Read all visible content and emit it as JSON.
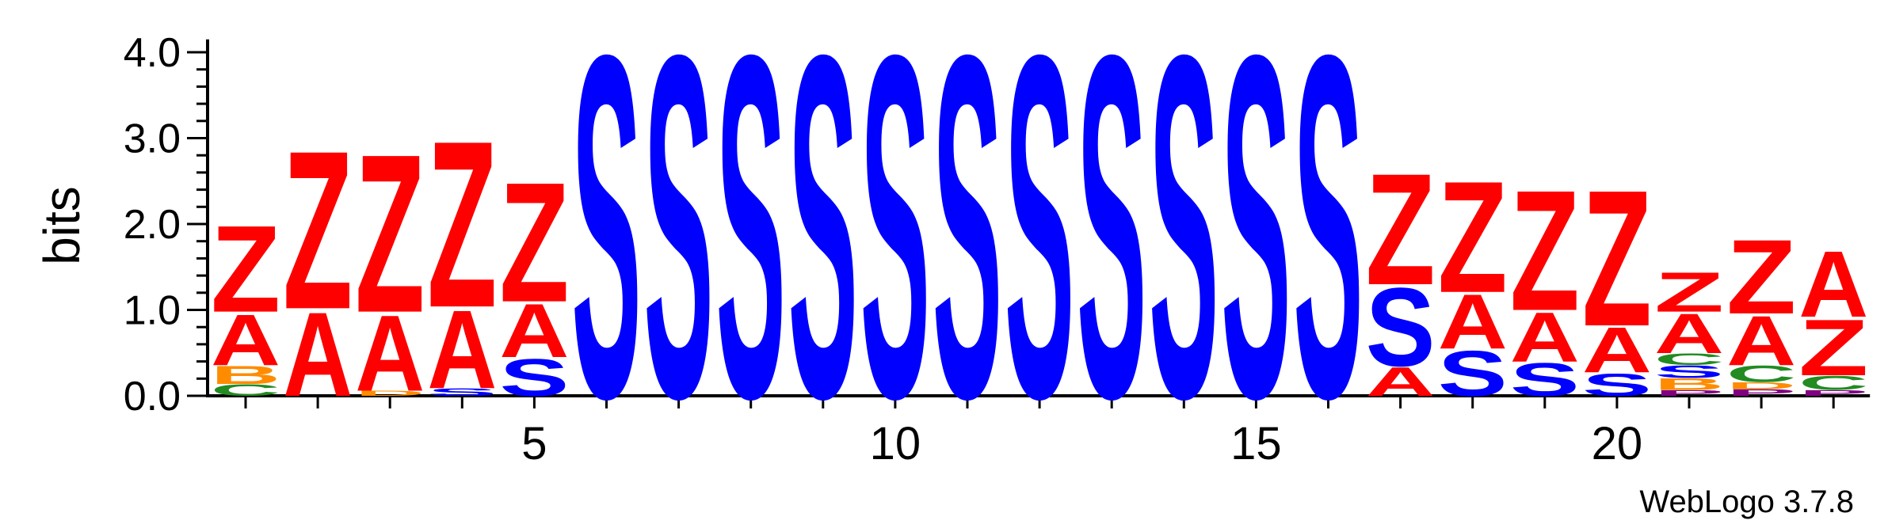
{
  "chart_data": {
    "type": "sequence-logo",
    "ylabel": "bits",
    "ylim": [
      0,
      4.0
    ],
    "yticks": [
      "0.0",
      "1.0",
      "2.0",
      "3.0",
      "4.0"
    ],
    "xticks": [
      5,
      10,
      15,
      20
    ],
    "positions": [
      1,
      2,
      3,
      4,
      5,
      6,
      7,
      8,
      9,
      10,
      11,
      12,
      13,
      14,
      15,
      16,
      17,
      18,
      19,
      20,
      21,
      22,
      23
    ],
    "colors": {
      "Z": "#ff0000",
      "A": "#ff0000",
      "S": "#0000ff",
      "B": "#ff8c00",
      "D": "#ff8c00",
      "C": "#228b22",
      "P": "#800080"
    },
    "stacks": [
      [
        {
          "l": "C",
          "v": 0.14
        },
        {
          "l": "B",
          "v": 0.22
        },
        {
          "l": "A",
          "v": 0.62
        },
        {
          "l": "Z",
          "v": 1.05
        }
      ],
      [
        {
          "l": "A",
          "v": 1.02
        },
        {
          "l": "Z",
          "v": 1.92
        }
      ],
      [
        {
          "l": "D",
          "v": 0.06
        },
        {
          "l": "A",
          "v": 0.92
        },
        {
          "l": "Z",
          "v": 1.92
        }
      ],
      [
        {
          "l": "S",
          "v": 0.09
        },
        {
          "l": "A",
          "v": 0.95
        },
        {
          "l": "Z",
          "v": 2.02
        }
      ],
      [
        {
          "l": "S",
          "v": 0.45
        },
        {
          "l": "A",
          "v": 0.65
        },
        {
          "l": "Z",
          "v": 1.45
        }
      ],
      [
        {
          "l": "S",
          "v": 4.15
        }
      ],
      [
        {
          "l": "S",
          "v": 4.15
        }
      ],
      [
        {
          "l": "S",
          "v": 4.15
        }
      ],
      [
        {
          "l": "S",
          "v": 4.15
        }
      ],
      [
        {
          "l": "S",
          "v": 4.15
        }
      ],
      [
        {
          "l": "S",
          "v": 4.15
        }
      ],
      [
        {
          "l": "S",
          "v": 4.15
        }
      ],
      [
        {
          "l": "S",
          "v": 4.15
        }
      ],
      [
        {
          "l": "S",
          "v": 4.15
        }
      ],
      [
        {
          "l": "S",
          "v": 4.15
        }
      ],
      [
        {
          "l": "S",
          "v": 4.15
        }
      ],
      [
        {
          "l": "A",
          "v": 0.35
        },
        {
          "l": "S",
          "v": 0.95
        },
        {
          "l": "Z",
          "v": 1.35
        }
      ],
      [
        {
          "l": "S",
          "v": 0.55
        },
        {
          "l": "A",
          "v": 0.66
        },
        {
          "l": "Z",
          "v": 1.35
        }
      ],
      [
        {
          "l": "S",
          "v": 0.4
        },
        {
          "l": "A",
          "v": 0.6
        },
        {
          "l": "Z",
          "v": 1.46
        }
      ],
      [
        {
          "l": "S",
          "v": 0.27
        },
        {
          "l": "A",
          "v": 0.55
        },
        {
          "l": "Z",
          "v": 1.65
        }
      ],
      [
        {
          "l": "P",
          "v": 0.07
        },
        {
          "l": "B",
          "v": 0.14
        },
        {
          "l": "S",
          "v": 0.15
        },
        {
          "l": "C",
          "v": 0.14
        },
        {
          "l": "A",
          "v": 0.48
        },
        {
          "l": "Z",
          "v": 0.48
        }
      ],
      [
        {
          "l": "P",
          "v": 0.08
        },
        {
          "l": "D",
          "v": 0.08
        },
        {
          "l": "C",
          "v": 0.2
        },
        {
          "l": "A",
          "v": 0.6
        },
        {
          "l": "Z",
          "v": 0.9
        }
      ],
      [
        {
          "l": "P",
          "v": 0.07
        },
        {
          "l": "C",
          "v": 0.17
        },
        {
          "l": "Z",
          "v": 0.68
        },
        {
          "l": "A",
          "v": 0.8
        }
      ]
    ]
  },
  "credit": "WebLogo 3.7.8"
}
